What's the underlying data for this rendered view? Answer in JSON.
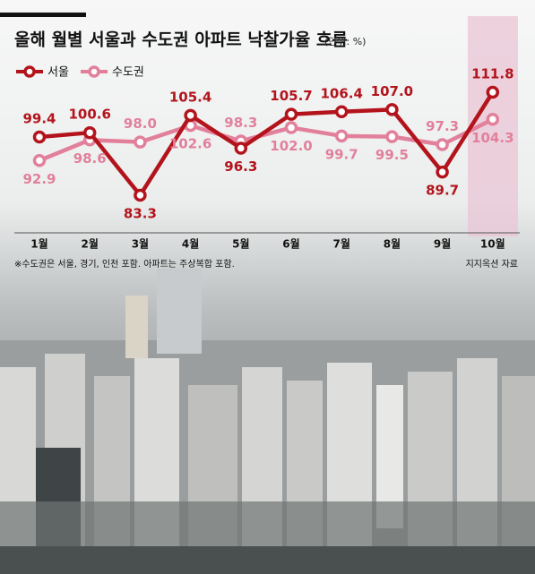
{
  "chart_data": {
    "type": "line",
    "title": "올해 월별 서울과 수도권 아파트 낙찰가율 흐름",
    "subtitle": "(단위: %)",
    "categories": [
      "1월",
      "2월",
      "3월",
      "4월",
      "5월",
      "6월",
      "7월",
      "8월",
      "9월",
      "10월"
    ],
    "series": [
      {
        "name": "서울",
        "color": "#b3141c",
        "values": [
          99.4,
          100.6,
          83.3,
          105.4,
          96.3,
          105.7,
          106.4,
          107.0,
          89.7,
          111.8
        ],
        "value_labels": [
          "99.4",
          "100.6",
          "83.3",
          "105.4",
          "96.3",
          "105.7",
          "106.4",
          "107.0",
          "89.7",
          "111.8"
        ]
      },
      {
        "name": "수도권",
        "color": "#e2809c",
        "values": [
          92.9,
          98.6,
          98.0,
          102.6,
          98.3,
          102.0,
          99.7,
          99.5,
          97.3,
          104.3
        ],
        "value_labels": [
          "92.9",
          "98.6",
          "98.0",
          "102.6",
          "98.3",
          "102.0",
          "99.7",
          "99.5",
          "97.3",
          "104.3"
        ]
      }
    ],
    "note": "※수도권은 서울, 경기, 인천 포함. 아파트는 주상복합 포함.",
    "source": "지지옥션 자료"
  }
}
